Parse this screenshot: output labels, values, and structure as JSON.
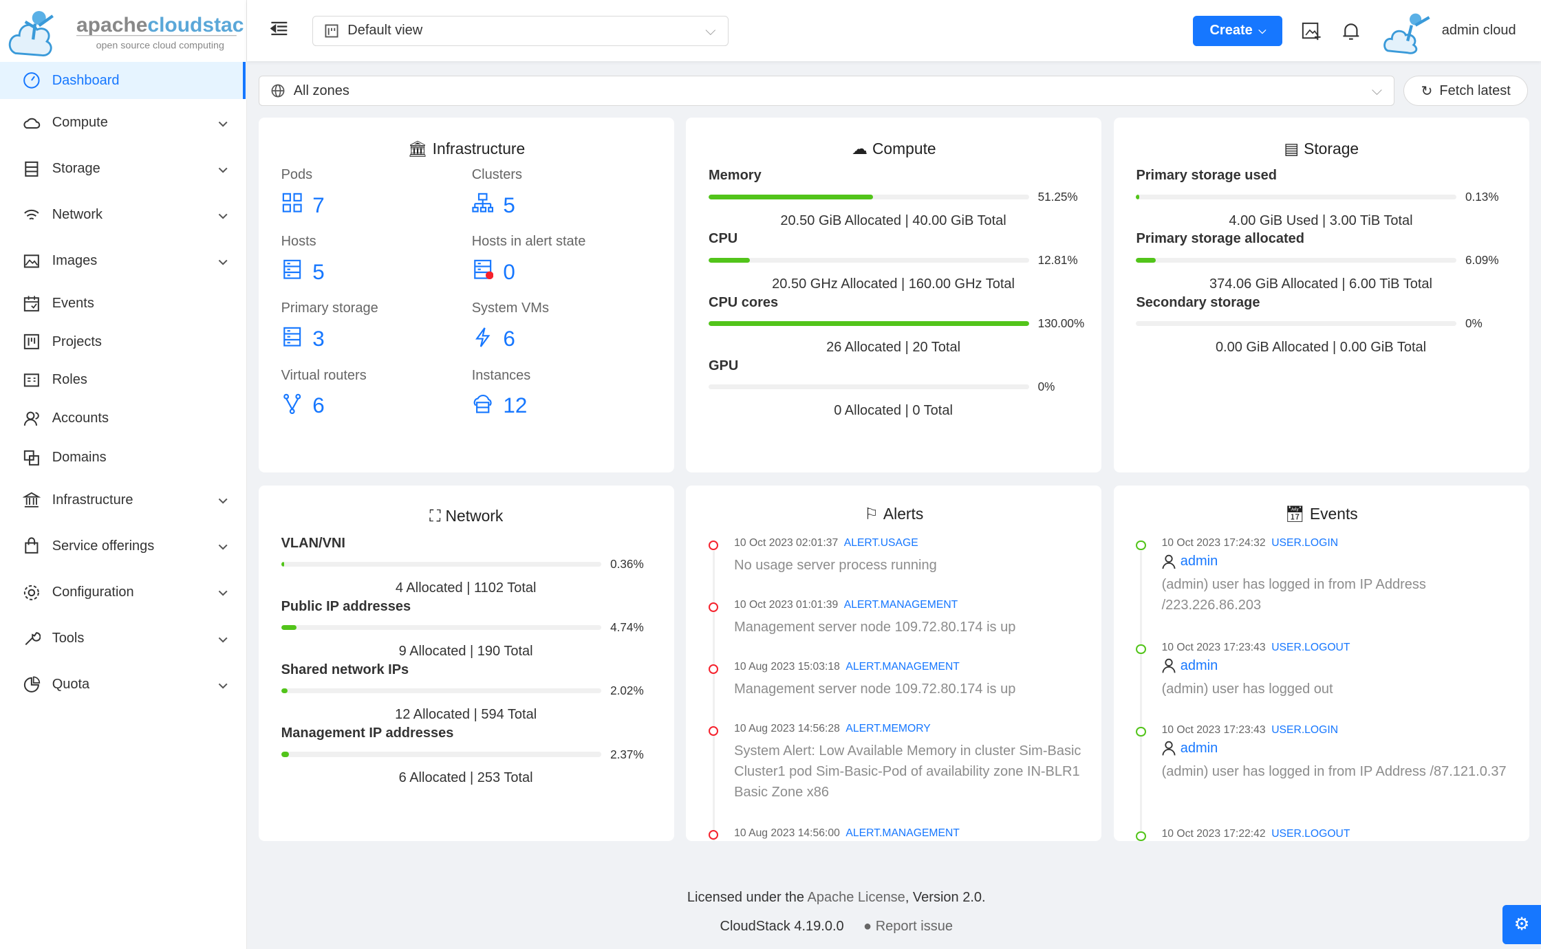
{
  "brand": {
    "name": "apachecloudstack",
    "tagline": "open source cloud computing"
  },
  "header": {
    "view_select": "Default view",
    "create_label": "Create",
    "user_name": "admin cloud"
  },
  "sidebar": {
    "items": [
      {
        "label": "Dashboard",
        "icon": "dashboard-icon",
        "active": true
      },
      {
        "label": "Compute",
        "icon": "cloud-icon",
        "expandable": true
      },
      {
        "label": "Storage",
        "icon": "database-icon",
        "expandable": true
      },
      {
        "label": "Network",
        "icon": "wifi-icon",
        "expandable": true
      },
      {
        "label": "Images",
        "icon": "picture-icon",
        "expandable": true
      },
      {
        "label": "Events",
        "icon": "schedule-icon"
      },
      {
        "label": "Projects",
        "icon": "project-icon"
      },
      {
        "label": "Roles",
        "icon": "idcard-icon"
      },
      {
        "label": "Accounts",
        "icon": "team-icon"
      },
      {
        "label": "Domains",
        "icon": "block-icon"
      },
      {
        "label": "Infrastructure",
        "icon": "bank-icon",
        "expandable": true
      },
      {
        "label": "Service offerings",
        "icon": "shopping-icon",
        "expandable": true
      },
      {
        "label": "Configuration",
        "icon": "setting-icon",
        "expandable": true
      },
      {
        "label": "Tools",
        "icon": "tool-icon",
        "expandable": true
      },
      {
        "label": "Quota",
        "icon": "pie-chart-icon",
        "expandable": true
      }
    ]
  },
  "toolbar": {
    "zone_select": "All zones",
    "fetch_label": "Fetch latest"
  },
  "infrastructure": {
    "title": "Infrastructure",
    "items": [
      {
        "label": "Pods",
        "value": "7"
      },
      {
        "label": "Clusters",
        "value": "5"
      },
      {
        "label": "Hosts",
        "value": "5"
      },
      {
        "label": "Hosts in alert state",
        "value": "0"
      },
      {
        "label": "Primary storage",
        "value": "3"
      },
      {
        "label": "System VMs",
        "value": "6"
      },
      {
        "label": "Virtual routers",
        "value": "6"
      },
      {
        "label": "Instances",
        "value": "12"
      }
    ]
  },
  "compute": {
    "title": "Compute",
    "resources": [
      {
        "name": "Memory",
        "percent": "51.25%",
        "fill": 51.25,
        "summary": "20.50 GiB Allocated | 40.00 GiB Total"
      },
      {
        "name": "CPU",
        "percent": "12.81%",
        "fill": 12.81,
        "summary": "20.50 GHz Allocated | 160.00 GHz Total"
      },
      {
        "name": "CPU cores",
        "percent": "130.00%",
        "fill": 100,
        "summary": "26 Allocated | 20 Total"
      },
      {
        "name": "GPU",
        "percent": "0%",
        "fill": 0,
        "summary": "0 Allocated | 0 Total"
      }
    ]
  },
  "storage": {
    "title": "Storage",
    "resources": [
      {
        "name": "Primary storage used",
        "percent": "0.13%",
        "fill": 0.13,
        "summary": "4.00 GiB Used | 3.00 TiB Total"
      },
      {
        "name": "Primary storage allocated",
        "percent": "6.09%",
        "fill": 6.09,
        "summary": "374.06 GiB Allocated | 6.00 TiB Total"
      },
      {
        "name": "Secondary storage",
        "percent": "0%",
        "fill": 0,
        "summary": "0.00 GiB Allocated | 0.00 GiB Total"
      }
    ]
  },
  "network": {
    "title": "Network",
    "resources": [
      {
        "name": "VLAN/VNI",
        "percent": "0.36%",
        "fill": 0.36,
        "summary": "4 Allocated | 1102 Total"
      },
      {
        "name": "Public IP addresses",
        "percent": "4.74%",
        "fill": 4.74,
        "summary": "9 Allocated | 190 Total"
      },
      {
        "name": "Shared network IPs",
        "percent": "2.02%",
        "fill": 2.02,
        "summary": "12 Allocated | 594 Total"
      },
      {
        "name": "Management IP addresses",
        "percent": "2.37%",
        "fill": 2.37,
        "summary": "6 Allocated | 253 Total"
      }
    ]
  },
  "alerts": {
    "title": "Alerts",
    "items": [
      {
        "time": "10 Oct 2023 02:01:37",
        "type": "ALERT.USAGE",
        "text": "No usage server process running"
      },
      {
        "time": "10 Oct 2023 01:01:39",
        "type": "ALERT.MANAGEMENT",
        "text": "Management server node 109.72.80.174 is up"
      },
      {
        "time": "10 Aug 2023 15:03:18",
        "type": "ALERT.MANAGEMENT",
        "text": "Management server node 109.72.80.174 is up"
      },
      {
        "time": "10 Aug 2023 14:56:28",
        "type": "ALERT.MEMORY",
        "text": "System Alert: Low Available Memory in cluster Sim-Basic Cluster1 pod Sim-Basic-Pod of availability zone IN-BLR1 Basic Zone x86"
      },
      {
        "time": "10 Aug 2023 14:56:00",
        "type": "ALERT.MANAGEMENT",
        "text": ""
      }
    ]
  },
  "events": {
    "title": "Events",
    "items": [
      {
        "time": "10 Oct 2023 17:24:32",
        "type": "USER.LOGIN",
        "user": "admin",
        "text": "(admin) user has logged in from IP Address /223.226.86.203"
      },
      {
        "time": "10 Oct 2023 17:23:43",
        "type": "USER.LOGOUT",
        "user": "admin",
        "text": "(admin) user has logged out"
      },
      {
        "time": "10 Oct 2023 17:23:43",
        "type": "USER.LOGIN",
        "user": "admin",
        "text": "(admin) user has logged in from IP Address /87.121.0.37"
      },
      {
        "time": "10 Oct 2023 17:22:42",
        "type": "USER.LOGOUT",
        "user": "",
        "text": ""
      }
    ]
  },
  "footer": {
    "license_prefix": "Licensed under the ",
    "license_link": "Apache License",
    "license_suffix": ", Version 2.0.",
    "version": "CloudStack 4.19.0.0",
    "report_issue": "Report issue"
  },
  "colors": {
    "primary": "#1677ff",
    "success": "#52c41a",
    "error": "#f5222d",
    "background": "#f0f2f5"
  }
}
